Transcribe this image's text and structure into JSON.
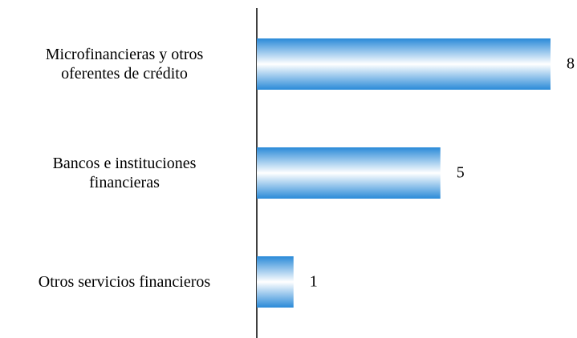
{
  "chart_data": {
    "type": "bar",
    "orientation": "horizontal",
    "categories": [
      "Microfinancieras y otros\noferentes de crédito",
      "Bancos e instituciones\nfinancieras",
      "Otros servicios financieros"
    ],
    "values": [
      8,
      5,
      1
    ],
    "color": "#2a8ad8",
    "xlim": [
      0,
      8
    ]
  }
}
